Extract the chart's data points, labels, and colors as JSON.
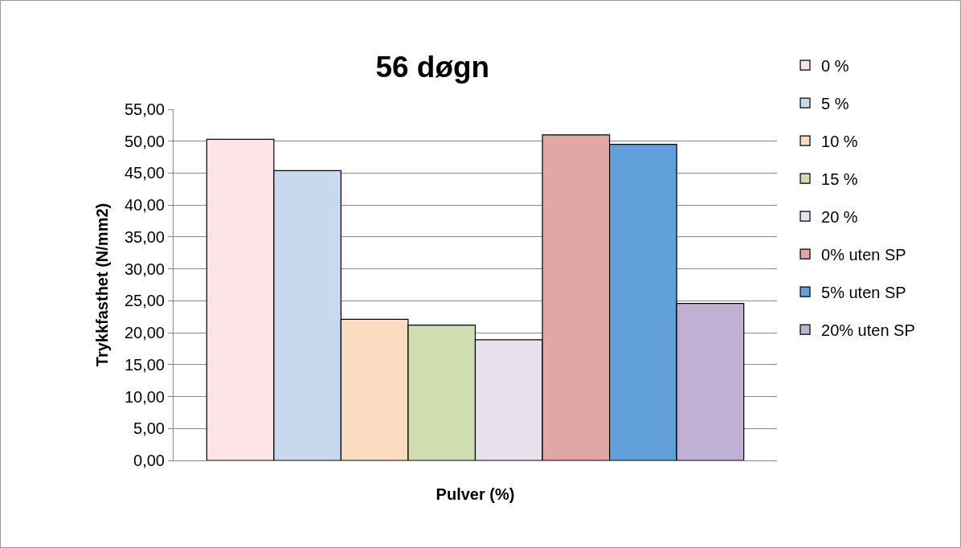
{
  "chart_data": {
    "type": "bar",
    "title": "56 døgn",
    "xlabel": "Pulver (%)",
    "ylabel": "Trykkfasthet (N/mm2)",
    "categories": [
      null
    ],
    "series": [
      {
        "name": "0 %",
        "color": "#fde4e6",
        "values": [
          50.3
        ]
      },
      {
        "name": "5 %",
        "color": "#c6d9ee",
        "values": [
          45.4
        ]
      },
      {
        "name": "10 %",
        "color": "#fbdcc0",
        "values": [
          22.1
        ]
      },
      {
        "name": "15 %",
        "color": "#d0ddb0",
        "values": [
          21.2
        ]
      },
      {
        "name": "20 %",
        "color": "#e8e2ef",
        "values": [
          18.9
        ]
      },
      {
        "name": "0% uten SP",
        "color": "#e0a7a5",
        "values": [
          51.0
        ]
      },
      {
        "name": "5% uten SP",
        "color": "#62a0dc",
        "values": [
          49.5
        ]
      },
      {
        "name": "20% uten SP",
        "color": "#c0b0d3",
        "values": [
          24.6
        ]
      }
    ],
    "ylim": [
      0,
      55
    ],
    "yticks": [
      {
        "value": 0,
        "label": "0,00"
      },
      {
        "value": 5,
        "label": "5,00"
      },
      {
        "value": 10,
        "label": "10,00"
      },
      {
        "value": 15,
        "label": "15,00"
      },
      {
        "value": 20,
        "label": "20,00"
      },
      {
        "value": 25,
        "label": "25,00"
      },
      {
        "value": 30,
        "label": "30,00"
      },
      {
        "value": 35,
        "label": "35,00"
      },
      {
        "value": 40,
        "label": "40,00"
      },
      {
        "value": 45,
        "label": "45,00"
      },
      {
        "value": 50,
        "label": "50,00"
      },
      {
        "value": 55,
        "label": "55,00"
      }
    ],
    "grid": "y",
    "legend": "right"
  }
}
